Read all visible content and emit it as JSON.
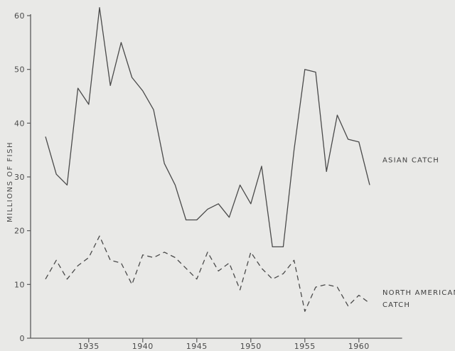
{
  "chart_data": {
    "type": "line",
    "title": "",
    "xlabel": "",
    "ylabel": "MILLIONS OF FISH",
    "xlim": [
      1930,
      1964
    ],
    "ylim": [
      0,
      60
    ],
    "grid": false,
    "x_ticks": [
      1935,
      1940,
      1945,
      1950,
      1955,
      1960
    ],
    "y_ticks": [
      0,
      10,
      20,
      30,
      40,
      50,
      60
    ],
    "x_tick_labels": [
      "1935",
      "1940",
      "1945",
      "1950",
      "1955",
      "1960"
    ],
    "y_tick_labels": [
      "0",
      "10",
      "20",
      "30",
      "40",
      "50",
      "60"
    ],
    "x": [
      1931,
      1932,
      1933,
      1934,
      1935,
      1936,
      1937,
      1938,
      1939,
      1940,
      1941,
      1942,
      1943,
      1944,
      1945,
      1946,
      1947,
      1948,
      1949,
      1950,
      1951,
      1952,
      1953,
      1954,
      1955,
      1956,
      1957,
      1958,
      1959,
      1960,
      1961
    ],
    "series": [
      {
        "name": "ASIAN CATCH",
        "style": "solid",
        "label_lines": [
          "ASIAN CATCH"
        ],
        "values": [
          37.5,
          30.5,
          28.5,
          46.5,
          43.5,
          61.5,
          47,
          55,
          48.5,
          46,
          42.5,
          32.5,
          28.5,
          22,
          22,
          24,
          25,
          22.5,
          28.5,
          25,
          32,
          17,
          17,
          35,
          50,
          49.5,
          31,
          41.5,
          37,
          36.5,
          28.5
        ]
      },
      {
        "name": "NORTH AMERICAN CATCH",
        "style": "dashed",
        "label_lines": [
          "NORTH AMERICAN",
          "CATCH"
        ],
        "values": [
          11,
          14.5,
          11,
          13.5,
          15,
          19,
          14.5,
          14,
          10,
          15.5,
          15,
          16,
          15,
          13,
          11,
          16,
          12.5,
          14,
          9,
          16,
          13,
          11,
          12,
          14.5,
          5,
          9.5,
          10,
          9.5,
          6,
          8,
          6.5
        ]
      }
    ]
  }
}
